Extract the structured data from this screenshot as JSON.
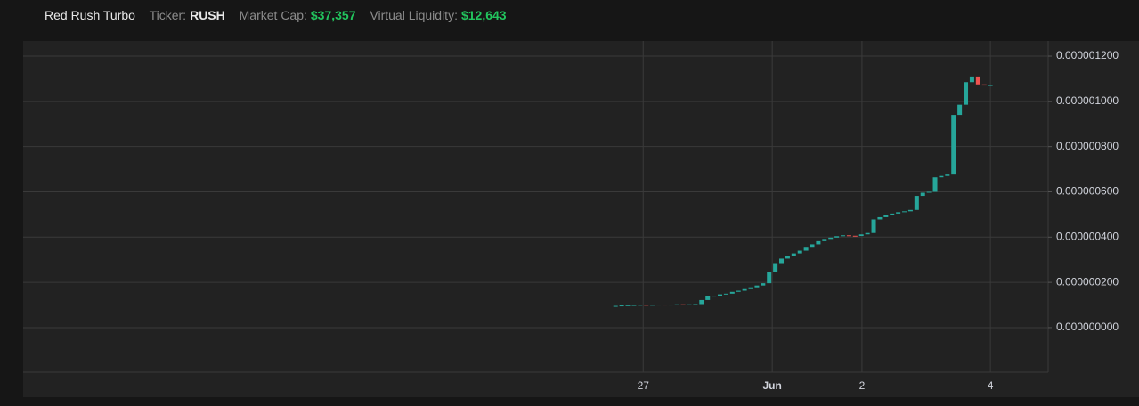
{
  "header": {
    "name": "Red Rush Turbo",
    "ticker_label": "Ticker:",
    "ticker": "RUSH",
    "market_cap_label": "Market Cap:",
    "market_cap": "$37,357",
    "liquidity_label": "Virtual Liquidity:",
    "liquidity": "$12,643"
  },
  "chart_data": {
    "type": "candlestick",
    "up_color": "#26a69a",
    "down_color": "#ef5350",
    "grid": true,
    "xlim": [
      -96.4,
      70.4
    ],
    "xticks": [
      {
        "value": 4.5,
        "label": "27"
      },
      {
        "value": 25.5,
        "label": "Jun"
      },
      {
        "value": 40.1,
        "label": "2"
      },
      {
        "value": 61,
        "label": "4"
      }
    ],
    "ylim": [
      -1.97e-07,
      1.267e-06
    ],
    "yticks": [
      {
        "value": 0,
        "label": "0.000000000"
      },
      {
        "value": 2e-07,
        "label": "0.000000200"
      },
      {
        "value": 4e-07,
        "label": "0.000000400"
      },
      {
        "value": 6e-07,
        "label": "0.000000600"
      },
      {
        "value": 8e-07,
        "label": "0.000000800"
      },
      {
        "value": 1e-06,
        "label": "0.000001000"
      },
      {
        "value": 1.2e-06,
        "label": "0.000001200"
      }
    ],
    "open": [
      9.5e-08,
      9.6e-08,
      9.8e-08,
      9.9e-08,
      1e-07,
      1.01e-07,
      1e-07,
      1.01e-07,
      1.02e-07,
      1.01e-07,
      1.02e-07,
      1.03e-07,
      1.02e-07,
      1.03e-07,
      1.04e-07,
      1.22e-07,
      1.38e-07,
      1.41e-07,
      1.47e-07,
      1.5e-07,
      1.58e-07,
      1.63e-07,
      1.7e-07,
      1.78e-07,
      1.86e-07,
      1.96e-07,
      2.44e-07,
      2.85e-07,
      3.05e-07,
      3.18e-07,
      3.28e-07,
      3.4e-07,
      3.57e-07,
      3.68e-07,
      3.82e-07,
      3.92e-07,
      3.98e-07,
      4.04e-07,
      4.08e-07,
      4.06e-07,
      4.05e-07,
      4.12e-07,
      4.18e-07,
      4.78e-07,
      4.88e-07,
      4.96e-07,
      5.04e-07,
      5.1e-07,
      5.14e-07,
      5.2e-07,
      5.82e-07,
      5.96e-07,
      6e-07,
      6.64e-07,
      6.7e-07,
      6.8e-07,
      9.4e-07,
      9.85e-07,
      1.085e-06,
      1.11e-06,
      1.075e-06,
      1.07e-06
    ],
    "close": [
      9.6e-08,
      9.8e-08,
      9.9e-08,
      1e-07,
      1.01e-07,
      1e-07,
      1.01e-07,
      1.02e-07,
      1.01e-07,
      1.02e-07,
      1.03e-07,
      1.02e-07,
      1.03e-07,
      1.04e-07,
      1.22e-07,
      1.38e-07,
      1.41e-07,
      1.47e-07,
      1.5e-07,
      1.58e-07,
      1.63e-07,
      1.7e-07,
      1.78e-07,
      1.86e-07,
      1.96e-07,
      2.44e-07,
      2.85e-07,
      3.05e-07,
      3.18e-07,
      3.28e-07,
      3.4e-07,
      3.57e-07,
      3.68e-07,
      3.82e-07,
      3.92e-07,
      3.98e-07,
      4.04e-07,
      4.08e-07,
      4.06e-07,
      4.05e-07,
      4.12e-07,
      4.18e-07,
      4.78e-07,
      4.88e-07,
      4.96e-07,
      5.04e-07,
      5.1e-07,
      5.14e-07,
      5.2e-07,
      5.82e-07,
      5.96e-07,
      6e-07,
      6.64e-07,
      6.7e-07,
      6.8e-07,
      9.4e-07,
      9.85e-07,
      1.085e-06,
      1.11e-06,
      1.075e-06,
      1.07e-06,
      1.072e-06
    ]
  }
}
